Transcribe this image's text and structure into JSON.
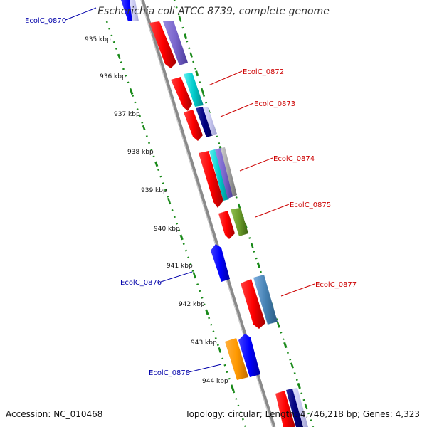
{
  "title": "Escherichia coli ATCC 8739, complete genome",
  "footer": {
    "accession_label": "Accession:",
    "accession": "NC_010468",
    "topology_label": "Topology:",
    "topology": "circular",
    "length_label": "Length:",
    "length": "4,746,218 bp",
    "genes_label": "Genes:",
    "genes": "4,323"
  },
  "scale": {
    "unit": "kbp",
    "ticks": [
      "935 kbp",
      "936 kbp",
      "937 kbp",
      "938 kbp",
      "939 kbp",
      "940 kbp",
      "941 kbp",
      "942 kbp",
      "943 kbp",
      "944 kbp"
    ]
  },
  "labels": [
    {
      "text": "EcolC_0870",
      "color": "#0000aa",
      "side": "left"
    },
    {
      "text": "EcolC_0872",
      "color": "#cc0000",
      "side": "right"
    },
    {
      "text": "EcolC_0873",
      "color": "#cc0000",
      "side": "right"
    },
    {
      "text": "EcolC_0874",
      "color": "#cc0000",
      "side": "right"
    },
    {
      "text": "EcolC_0875",
      "color": "#cc0000",
      "side": "right"
    },
    {
      "text": "EcolC_0876",
      "color": "#0000aa",
      "side": "left"
    },
    {
      "text": "EcolC_0877",
      "color": "#cc0000",
      "side": "right"
    },
    {
      "text": "EcolC_0878",
      "color": "#0000aa",
      "side": "left"
    }
  ],
  "colors": {
    "backbone": "#8a8a8a",
    "tick": "#1a8a1a",
    "forward_cds": "#ff0000",
    "reverse_cds": "#0000ff",
    "orange_cds": "#ff9900"
  }
}
